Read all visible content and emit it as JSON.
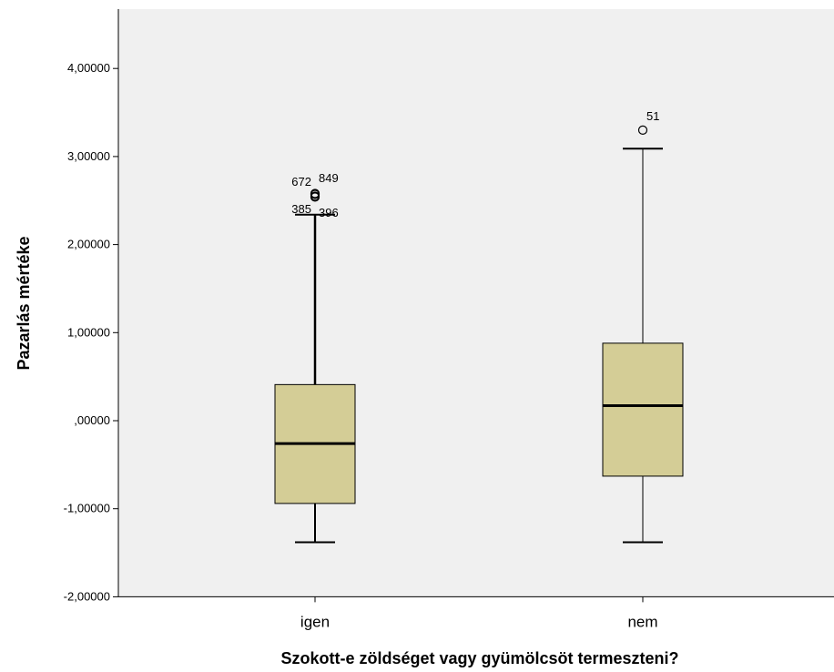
{
  "chart_data": {
    "type": "boxplot",
    "xlabel": "Szokott-e zöldséget vagy gyümölcsöt termeszteni?",
    "ylabel": "Pazarlás mértéke",
    "ylim": [
      -2,
      4.6
    ],
    "yticks": [
      -2,
      -1,
      0,
      1,
      2,
      3,
      4
    ],
    "ytick_labels": [
      "-2,00000",
      "-1,00000",
      ",00000",
      "1,00000",
      "2,00000",
      "3,00000",
      "4,00000"
    ],
    "grid": false,
    "box_color": "#d4cd96",
    "plot_background": "#f0f0f0",
    "categories": [
      "igen",
      "nem"
    ],
    "boxes": [
      {
        "category": "igen",
        "whisker_low": -1.38,
        "q1": -0.94,
        "median": -0.26,
        "q3": 0.41,
        "whisker_high": 2.34,
        "outliers": [
          {
            "value": 2.57,
            "label": "672"
          },
          {
            "value": 2.58,
            "label": "849"
          },
          {
            "value": 2.54,
            "label": "385"
          },
          {
            "value": 2.55,
            "label": "396"
          }
        ]
      },
      {
        "category": "nem",
        "whisker_low": -1.38,
        "q1": -0.63,
        "median": 0.17,
        "q3": 0.88,
        "whisker_high": 3.09,
        "outliers": [
          {
            "value": 3.3,
            "label": "51"
          }
        ]
      }
    ]
  }
}
